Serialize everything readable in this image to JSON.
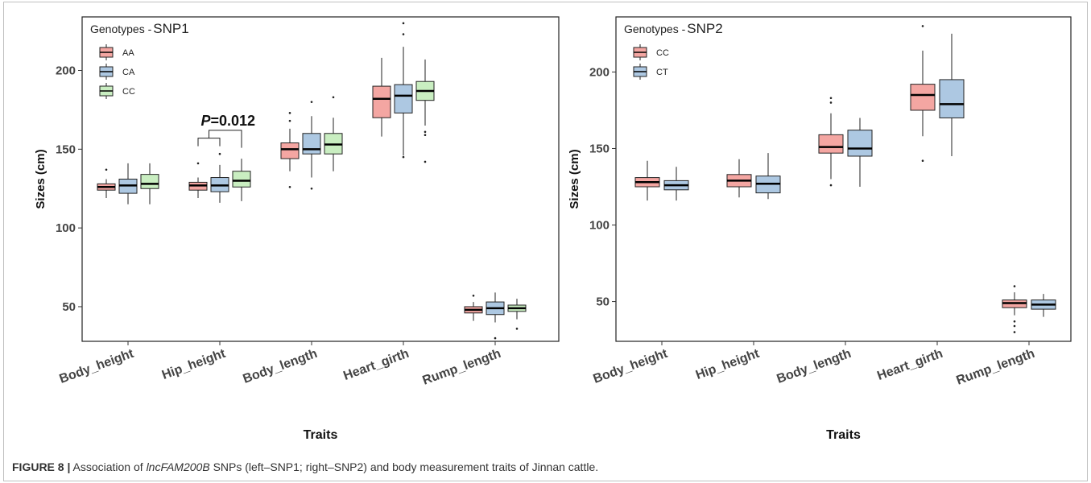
{
  "figure": {
    "caption_label": "FIGURE 8 |",
    "caption_pre": "Association of",
    "caption_gene": "lncFAM200B",
    "caption_post": "SNPs (left–SNP1; right–SNP2) and body measurement traits of Jinnan cattle."
  },
  "chart_data": [
    {
      "type": "box",
      "xlabel": "Traits",
      "ylabel": "Sizes (cm)",
      "ylim": [
        28,
        234
      ],
      "yticks": [
        50,
        100,
        150,
        200
      ],
      "categories": [
        "Body_height",
        "Hip_height",
        "Body_length",
        "Heart_girth",
        "Rump_length"
      ],
      "legend": {
        "title_prefix": "Genotypes",
        "title_snp": "SNP1",
        "position": "top-left",
        "entries": [
          {
            "name": "AA",
            "color": "#f4a6a2"
          },
          {
            "name": "CA",
            "color": "#adc8e2"
          },
          {
            "name": "CC",
            "color": "#c9eec1"
          }
        ]
      },
      "annotation": {
        "text_p": "P",
        "text_val": "=0.012",
        "category": "Hip_height",
        "between": [
          "AA",
          "CA",
          "CC"
        ]
      },
      "series": [
        {
          "name": "AA",
          "color": "#f4a6a2",
          "boxes": [
            {
              "q1": 124,
              "median": 126,
              "q3": 128,
              "whislo": 119,
              "whishi": 131,
              "outliers": [
                137
              ]
            },
            {
              "q1": 124,
              "median": 127,
              "q3": 129,
              "whislo": 119,
              "whishi": 132,
              "outliers": [
                141
              ]
            },
            {
              "q1": 144,
              "median": 150,
              "q3": 154,
              "whislo": 136,
              "whishi": 163,
              "outliers": [
                168,
                173,
                126
              ]
            },
            {
              "q1": 170,
              "median": 182,
              "q3": 190,
              "whislo": 158,
              "whishi": 208,
              "outliers": []
            },
            {
              "q1": 46,
              "median": 48,
              "q3": 50,
              "whislo": 41,
              "whishi": 53,
              "outliers": [
                57
              ]
            }
          ]
        },
        {
          "name": "CA",
          "color": "#adc8e2",
          "boxes": [
            {
              "q1": 122,
              "median": 127,
              "q3": 131,
              "whislo": 115,
              "whishi": 141,
              "outliers": []
            },
            {
              "q1": 123,
              "median": 127,
              "q3": 132,
              "whislo": 116,
              "whishi": 140,
              "outliers": [
                147
              ]
            },
            {
              "q1": 147,
              "median": 150,
              "q3": 160,
              "whislo": 132,
              "whishi": 171,
              "outliers": [
                180,
                125
              ]
            },
            {
              "q1": 173,
              "median": 184,
              "q3": 191,
              "whislo": 146,
              "whishi": 215,
              "outliers": [
                223,
                230,
                145
              ]
            },
            {
              "q1": 45,
              "median": 49,
              "q3": 53,
              "whislo": 40,
              "whishi": 59,
              "outliers": [
                30
              ]
            }
          ]
        },
        {
          "name": "CC",
          "color": "#c9eec1",
          "boxes": [
            {
              "q1": 125,
              "median": 128,
              "q3": 134,
              "whislo": 115,
              "whishi": 141,
              "outliers": []
            },
            {
              "q1": 126,
              "median": 130,
              "q3": 136,
              "whislo": 117,
              "whishi": 144,
              "outliers": []
            },
            {
              "q1": 147,
              "median": 153,
              "q3": 160,
              "whislo": 136,
              "whishi": 170,
              "outliers": [
                183
              ]
            },
            {
              "q1": 181,
              "median": 187,
              "q3": 193,
              "whislo": 165,
              "whishi": 207,
              "outliers": [
                161,
                159,
                142
              ]
            },
            {
              "q1": 47,
              "median": 49,
              "q3": 51,
              "whislo": 42,
              "whishi": 55,
              "outliers": [
                36
              ]
            }
          ]
        }
      ]
    },
    {
      "type": "box",
      "xlabel": "Traits",
      "ylabel": "Sizes (cm)",
      "ylim": [
        24,
        236
      ],
      "yticks": [
        50,
        100,
        150,
        200
      ],
      "categories": [
        "Body_height",
        "Hip_height",
        "Body_length",
        "Heart_girth",
        "Rump_length"
      ],
      "legend": {
        "title_prefix": "Genotypes",
        "title_snp": "SNP2",
        "position": "top-left",
        "entries": [
          {
            "name": "CC",
            "color": "#f4a6a2"
          },
          {
            "name": "CT",
            "color": "#adc8e2"
          }
        ]
      },
      "series": [
        {
          "name": "CC",
          "color": "#f4a6a2",
          "boxes": [
            {
              "q1": 125,
              "median": 128,
              "q3": 131,
              "whislo": 116,
              "whishi": 142,
              "outliers": []
            },
            {
              "q1": 125,
              "median": 129,
              "q3": 133,
              "whislo": 118,
              "whishi": 143,
              "outliers": []
            },
            {
              "q1": 147,
              "median": 151,
              "q3": 159,
              "whislo": 130,
              "whishi": 173,
              "outliers": [
                180,
                183,
                126
              ]
            },
            {
              "q1": 175,
              "median": 185,
              "q3": 192,
              "whislo": 158,
              "whishi": 214,
              "outliers": [
                230,
                142
              ]
            },
            {
              "q1": 46,
              "median": 49,
              "q3": 51,
              "whislo": 41,
              "whishi": 56,
              "outliers": [
                60,
                37,
                34,
                30
              ]
            }
          ]
        },
        {
          "name": "CT",
          "color": "#adc8e2",
          "boxes": [
            {
              "q1": 123,
              "median": 126,
              "q3": 129,
              "whislo": 116,
              "whishi": 138,
              "outliers": []
            },
            {
              "q1": 121,
              "median": 127,
              "q3": 132,
              "whislo": 117,
              "whishi": 147,
              "outliers": []
            },
            {
              "q1": 145,
              "median": 150,
              "q3": 162,
              "whislo": 125,
              "whishi": 170,
              "outliers": []
            },
            {
              "q1": 170,
              "median": 179,
              "q3": 195,
              "whislo": 145,
              "whishi": 225,
              "outliers": []
            },
            {
              "q1": 45,
              "median": 48,
              "q3": 51,
              "whislo": 40,
              "whishi": 55,
              "outliers": []
            }
          ]
        }
      ]
    }
  ]
}
